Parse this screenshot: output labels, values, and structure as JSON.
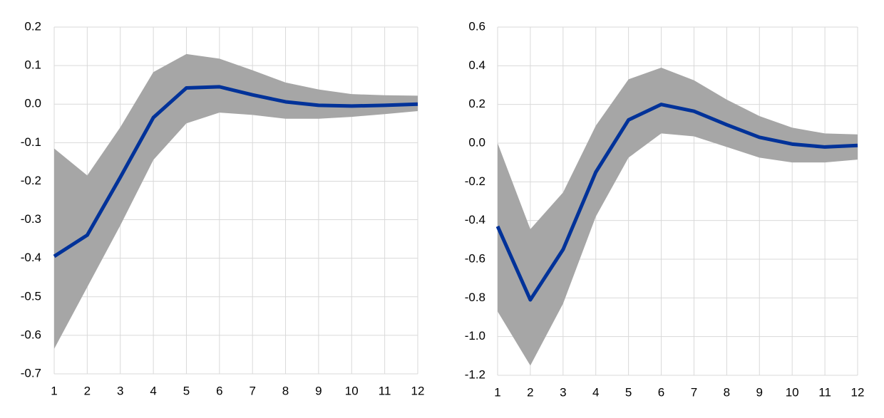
{
  "chart_data": [
    {
      "type": "line",
      "x": [
        1,
        2,
        3,
        4,
        5,
        6,
        7,
        8,
        9,
        10,
        11,
        12
      ],
      "xlim": [
        1,
        12
      ],
      "xticks": [
        1,
        2,
        3,
        4,
        5,
        6,
        7,
        8,
        9,
        10,
        11,
        12
      ],
      "ylim": [
        -0.7,
        0.2
      ],
      "yticks": [
        0.2,
        0.1,
        {
          "value": 0,
          "label": "0.0"
        },
        -0.1,
        -0.2,
        -0.3,
        -0.4,
        -0.5,
        -0.6,
        -0.7
      ],
      "grid": true,
      "band": {
        "color": "#a6a6a6",
        "upper": [
          -0.115,
          -0.185,
          -0.06,
          0.083,
          0.13,
          0.118,
          0.088,
          0.056,
          0.038,
          0.026,
          0.023,
          0.022
        ],
        "lower": [
          -0.635,
          -0.475,
          -0.315,
          -0.145,
          -0.05,
          -0.022,
          -0.028,
          -0.038,
          -0.038,
          -0.033,
          -0.026,
          -0.018
        ]
      },
      "series": [
        {
          "color": "#003299",
          "values": [
            -0.395,
            -0.34,
            -0.19,
            -0.035,
            0.042,
            0.045,
            0.024,
            0.006,
            -0.003,
            -0.005,
            -0.003,
            0
          ]
        }
      ]
    },
    {
      "type": "line",
      "x": [
        1,
        2,
        3,
        4,
        5,
        6,
        7,
        8,
        9,
        10,
        11,
        12
      ],
      "xlim": [
        1,
        12
      ],
      "xticks": [
        1,
        2,
        3,
        4,
        5,
        6,
        7,
        8,
        9,
        10,
        11,
        12
      ],
      "ylim": [
        -1.2,
        0.6
      ],
      "yticks": [
        0.6,
        0.4,
        0.2,
        {
          "value": 0,
          "label": "0.0"
        },
        -0.2,
        -0.4,
        -0.6,
        -0.8,
        {
          "value": -1,
          "label": "-1.0"
        },
        -1.2
      ],
      "grid": true,
      "band": {
        "color": "#a6a6a6",
        "upper": [
          0,
          -0.445,
          -0.255,
          0.09,
          0.33,
          0.39,
          0.325,
          0.225,
          0.14,
          0.08,
          0.05,
          0.045
        ],
        "lower": [
          -0.87,
          -1.15,
          -0.83,
          -0.38,
          -0.075,
          0.05,
          0.035,
          -0.02,
          -0.075,
          -0.1,
          -0.1,
          -0.085
        ]
      },
      "series": [
        {
          "color": "#003299",
          "values": [
            -0.43,
            -0.81,
            -0.55,
            -0.15,
            0.12,
            0.2,
            0.165,
            0.095,
            0.03,
            -0.005,
            -0.02,
            -0.012
          ]
        }
      ]
    }
  ]
}
